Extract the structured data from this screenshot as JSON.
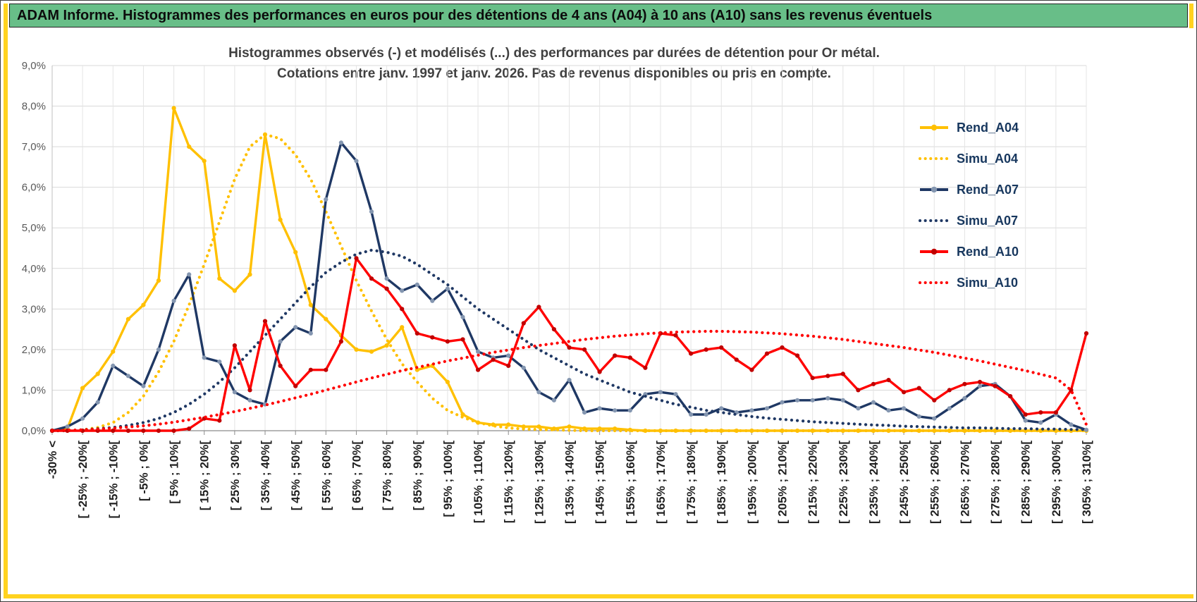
{
  "window": {
    "header_title": "ADAM Informe. Histogrammes des performances en euros pour des détentions de 4 ans (A04) à 10 ans (A10) sans les revenus éventuels"
  },
  "chart": {
    "title_line1": "Histogrammes observés (-) et modélisés (...) des performances par durées de détention pour Or métal.",
    "title_line2": "Cotations entre janv. 1997 et janv. 2026. Pas de revenus disponibles ou pris en compte.",
    "accent_colors": {
      "frame_yellow": "#ffd21f",
      "header_green": "#68be88"
    }
  },
  "chart_data": {
    "type": "line",
    "title": "Histogrammes observés (-) et modélisés (...) des performances par durées de détention pour Or métal. Cotations entre janv. 1997 et janv. 2026. Pas de revenus disponibles ou pris en compte.",
    "xlabel": "",
    "ylabel": "",
    "ylim": [
      0,
      9
    ],
    "y_unit": "%",
    "grid": true,
    "legend_position": "right-inside",
    "bin_width_pct": 5,
    "y_tick_labels": [
      "9,0%",
      "8,0%",
      "7,0%",
      "6,0%",
      "5,0%",
      "4,0%",
      "3,0%",
      "2,0%",
      "1,0%",
      "0,0%"
    ],
    "x_tick_labels": [
      "-30% <",
      "[ -25% ; -20%[",
      "[ -15% ; -10%[",
      "[ -5% ; 0%[",
      "[ 5% ; 10%[",
      "[ 15% ; 20%[",
      "[ 25% ; 30%[",
      "[ 35% ; 40%[",
      "[ 45% ; 50%[",
      "[ 55% ; 60%[",
      "[ 65% ; 70%[",
      "[ 75% ; 80%[",
      "[ 85% ; 90%[",
      "[ 95% ; 100%[",
      "[ 105% ; 110%[",
      "[ 115% ; 120%[",
      "[ 125% ; 130%[",
      "[ 135% ; 140%[",
      "[ 145% ; 150%[",
      "[ 155% ; 160%[",
      "[ 165% ; 170%[",
      "[ 175% ; 180%[",
      "[ 185% ; 190%[",
      "[ 195% ; 200%[",
      "[ 205% ; 210%[",
      "[ 215% ; 220%[",
      "[ 225% ; 230%[",
      "[ 235% ; 240%[",
      "[ 245% ; 250%[",
      "[ 255% ; 260%[",
      "[ 265% ; 270%[",
      "[ 275% ; 280%[",
      "[ 285% ; 290%[",
      "[ 295% ; 300%[",
      "[ 305% ; 310%["
    ],
    "series": [
      {
        "name": "Rend_A04",
        "style": "solid",
        "color": "#FFC000",
        "marker_color": "#FFC000",
        "values": [
          0,
          0.05,
          1.05,
          1.4,
          1.95,
          2.75,
          3.1,
          3.7,
          7.95,
          7.0,
          6.65,
          3.75,
          3.45,
          3.85,
          7.3,
          5.2,
          4.4,
          3.1,
          2.75,
          2.35,
          2.0,
          1.95,
          2.1,
          2.55,
          1.5,
          1.6,
          1.2,
          0.4,
          0.2,
          0.15,
          0.15,
          0.1,
          0.1,
          0.05,
          0.1,
          0.05,
          0.05,
          0.05,
          0.02,
          0,
          0,
          0,
          0,
          0,
          0,
          0,
          0,
          0,
          0,
          0,
          0,
          0,
          0,
          0,
          0,
          0,
          0,
          0,
          0,
          0,
          0,
          0,
          0,
          0,
          0,
          0,
          0,
          0,
          0
        ]
      },
      {
        "name": "Simu_A04",
        "style": "dotted",
        "color": "#FFC000",
        "values": [
          0,
          0,
          0.02,
          0.08,
          0.2,
          0.45,
          0.85,
          1.45,
          2.2,
          3.1,
          4.1,
          5.15,
          6.2,
          7.0,
          7.3,
          7.2,
          6.8,
          6.2,
          5.4,
          4.55,
          3.7,
          2.95,
          2.25,
          1.65,
          1.2,
          0.8,
          0.5,
          0.33,
          0.2,
          0.12,
          0.07,
          0.04,
          0.03,
          0.02,
          0.01,
          0,
          0,
          0,
          0,
          0,
          0,
          0,
          0,
          0,
          0,
          0,
          0,
          0,
          0,
          0,
          0,
          0,
          0,
          0,
          0,
          0,
          0,
          0,
          0,
          0,
          0,
          0,
          0,
          0,
          0,
          0,
          0,
          0,
          0
        ]
      },
      {
        "name": "Rend_A07",
        "style": "solid",
        "color": "#1F3864",
        "marker_color": "#8496B0",
        "values": [
          0,
          0.1,
          0.3,
          0.7,
          1.6,
          1.35,
          1.1,
          2.0,
          3.2,
          3.85,
          1.8,
          1.7,
          0.95,
          0.75,
          0.65,
          2.2,
          2.55,
          2.4,
          5.7,
          7.1,
          6.65,
          5.4,
          3.75,
          3.45,
          3.6,
          3.2,
          3.5,
          2.8,
          1.95,
          1.8,
          1.85,
          1.55,
          0.95,
          0.75,
          1.25,
          0.45,
          0.55,
          0.5,
          0.5,
          0.9,
          0.95,
          0.9,
          0.4,
          0.4,
          0.55,
          0.45,
          0.5,
          0.55,
          0.7,
          0.75,
          0.75,
          0.8,
          0.75,
          0.55,
          0.7,
          0.5,
          0.55,
          0.35,
          0.3,
          0.55,
          0.8,
          1.1,
          1.15,
          0.85,
          0.25,
          0.2,
          0.4,
          0.15,
          0.02
        ]
      },
      {
        "name": "Simu_A07",
        "style": "dotted",
        "color": "#1F3864",
        "values": [
          0,
          0,
          0.02,
          0.05,
          0.08,
          0.13,
          0.2,
          0.3,
          0.45,
          0.65,
          0.9,
          1.2,
          1.55,
          1.95,
          2.35,
          2.75,
          3.15,
          3.55,
          3.9,
          4.15,
          4.35,
          4.45,
          4.4,
          4.3,
          4.1,
          3.85,
          3.6,
          3.3,
          3.0,
          2.75,
          2.5,
          2.25,
          2.0,
          1.8,
          1.6,
          1.4,
          1.25,
          1.1,
          0.95,
          0.85,
          0.75,
          0.65,
          0.58,
          0.5,
          0.45,
          0.4,
          0.35,
          0.31,
          0.28,
          0.25,
          0.22,
          0.2,
          0.18,
          0.16,
          0.14,
          0.13,
          0.11,
          0.1,
          0.09,
          0.08,
          0.07,
          0.07,
          0.06,
          0.05,
          0.05,
          0.04,
          0.04,
          0.03,
          0.03
        ]
      },
      {
        "name": "Rend_A10",
        "style": "solid",
        "color": "#FF0000",
        "marker_color": "#C00000",
        "values": [
          0,
          0,
          0,
          0,
          0,
          0,
          0,
          0,
          0,
          0.05,
          0.3,
          0.25,
          2.1,
          1.0,
          2.7,
          1.6,
          1.1,
          1.5,
          1.5,
          2.2,
          4.25,
          3.75,
          3.5,
          3.0,
          2.4,
          2.3,
          2.2,
          2.25,
          1.5,
          1.75,
          1.6,
          2.65,
          3.05,
          2.5,
          2.05,
          2.0,
          1.45,
          1.85,
          1.8,
          1.55,
          2.4,
          2.35,
          1.9,
          2.0,
          2.05,
          1.75,
          1.5,
          1.9,
          2.05,
          1.85,
          1.3,
          1.35,
          1.4,
          1.0,
          1.15,
          1.25,
          0.95,
          1.05,
          0.75,
          1.0,
          1.15,
          1.2,
          1.1,
          0.85,
          0.4,
          0.45,
          0.45,
          1.0,
          2.4
        ]
      },
      {
        "name": "Simu_A10",
        "style": "dotted",
        "color": "#FF0000",
        "values": [
          0,
          0.01,
          0.02,
          0.04,
          0.06,
          0.09,
          0.12,
          0.16,
          0.21,
          0.27,
          0.33,
          0.4,
          0.47,
          0.55,
          0.63,
          0.72,
          0.81,
          0.9,
          1.0,
          1.1,
          1.2,
          1.3,
          1.39,
          1.48,
          1.56,
          1.64,
          1.72,
          1.79,
          1.86,
          1.93,
          1.99,
          2.05,
          2.1,
          2.15,
          2.2,
          2.25,
          2.29,
          2.33,
          2.36,
          2.39,
          2.41,
          2.43,
          2.44,
          2.45,
          2.45,
          2.44,
          2.43,
          2.41,
          2.39,
          2.36,
          2.33,
          2.29,
          2.25,
          2.2,
          2.15,
          2.1,
          2.05,
          1.99,
          1.93,
          1.86,
          1.79,
          1.72,
          1.64,
          1.56,
          1.48,
          1.39,
          1.3,
          1.0,
          0.15
        ]
      }
    ]
  }
}
